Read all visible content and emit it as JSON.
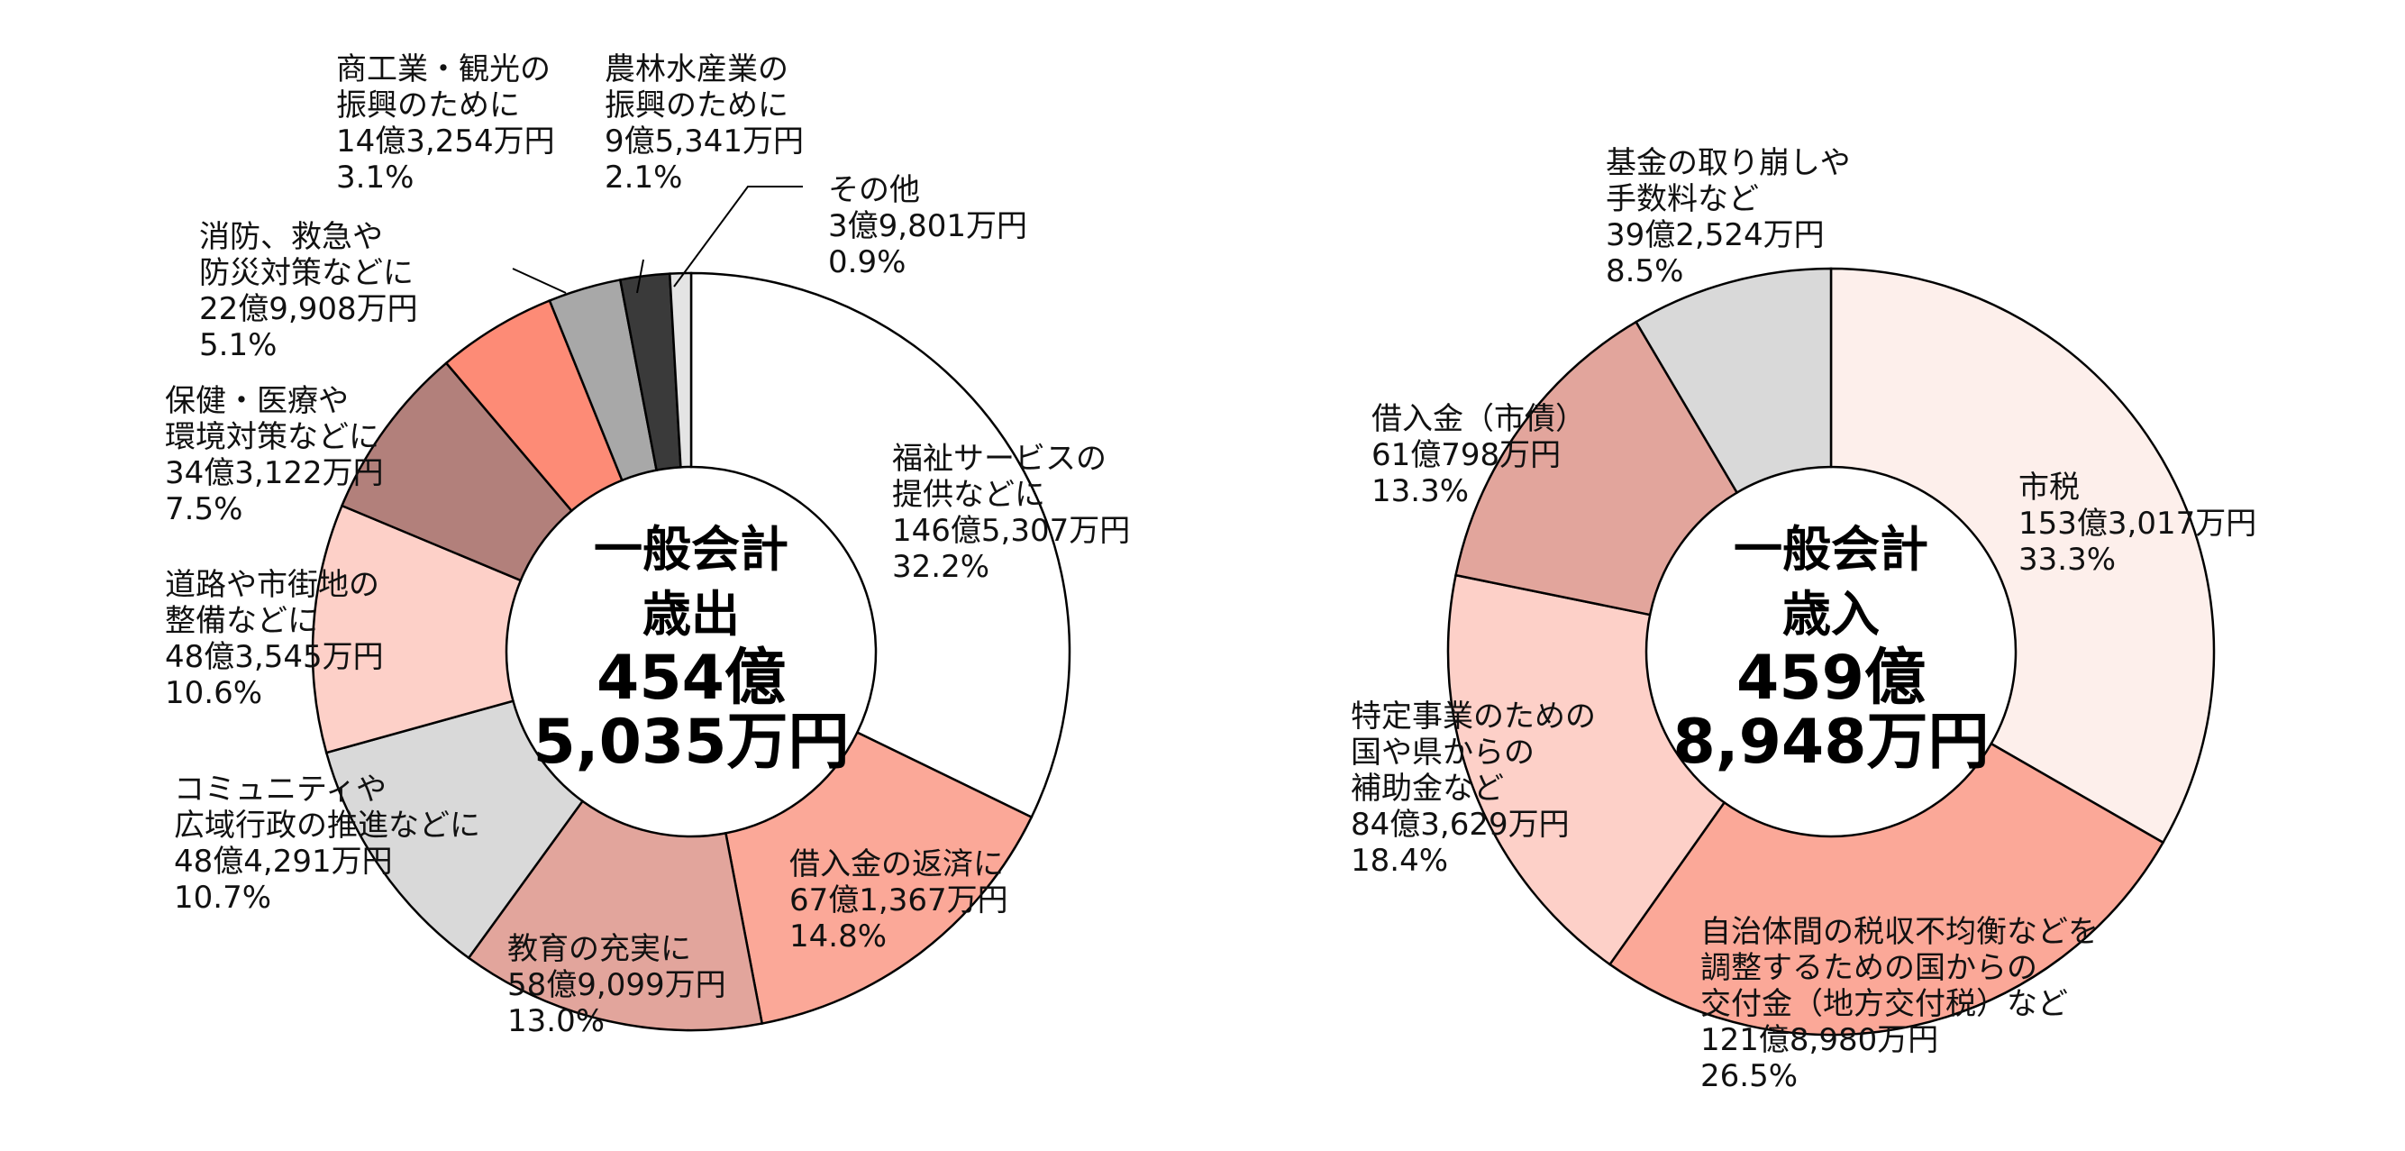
{
  "chart_data": [
    {
      "type": "pie",
      "style": "donut",
      "center_label": [
        "一般会計",
        "歳出",
        "454億",
        "5,035万円"
      ],
      "slices": [
        {
          "label": [
            "福祉サービスの",
            "提供などに"
          ],
          "amount": "146億5,307万円",
          "percent_text": "32.2%",
          "value": 32.2,
          "color": "#ffffff"
        },
        {
          "label": [
            "借入金の返済に"
          ],
          "amount": "67億1,367万円",
          "percent_text": "14.8%",
          "value": 14.8,
          "color": "#fba898"
        },
        {
          "label": [
            "教育の充実に"
          ],
          "amount": "58億9,099万円",
          "percent_text": "13.0%",
          "value": 13.0,
          "color": "#e2a59c"
        },
        {
          "label": [
            "コミュニティや",
            "広域行政の推進などに"
          ],
          "amount": "48億4,291万円",
          "percent_text": "10.7%",
          "value": 10.7,
          "color": "#d9d9d9"
        },
        {
          "label": [
            "道路や市街地の",
            "整備などに"
          ],
          "amount": "48億3,545万円",
          "percent_text": "10.6%",
          "value": 10.6,
          "color": "#fdd0c8"
        },
        {
          "label": [
            "保健・医療や",
            "環境対策などに"
          ],
          "amount": "34億3,122万円",
          "percent_text": "7.5%",
          "value": 7.5,
          "color": "#b2807b"
        },
        {
          "label": [
            "消防、救急や",
            "防災対策などに"
          ],
          "amount": "22億9,908万円",
          "percent_text": "5.1%",
          "value": 5.1,
          "color": "#fd8b76"
        },
        {
          "label": [
            "商工業・観光の",
            "振興のために"
          ],
          "amount": "14億3,254万円",
          "percent_text": "3.1%",
          "value": 3.1,
          "color": "#a8a8a8"
        },
        {
          "label": [
            "農林水産業の",
            "振興のために"
          ],
          "amount": "9億5,341万円",
          "percent_text": "2.1%",
          "value": 2.1,
          "color": "#3a3a3a"
        },
        {
          "label": [
            "その他"
          ],
          "amount": "3億9,801万円",
          "percent_text": "0.9%",
          "value": 0.9,
          "color": "#e4e4e4"
        }
      ]
    },
    {
      "type": "pie",
      "style": "donut",
      "center_label": [
        "一般会計",
        "歳入",
        "459億",
        "8,948万円"
      ],
      "slices": [
        {
          "label": [
            "市税"
          ],
          "amount": "153億3,017万円",
          "percent_text": "33.3%",
          "value": 33.3,
          "color": "#fdefeb"
        },
        {
          "label": [
            "自治体間の税収不均衡などを",
            "調整するための国からの",
            "交付金（地方交付税）など"
          ],
          "amount": "121億8,980万円",
          "percent_text": "26.5%",
          "value": 26.5,
          "color": "#fba898"
        },
        {
          "label": [
            "特定事業のための",
            "国や県からの",
            "補助金など"
          ],
          "amount": "84億3,629万円",
          "percent_text": "18.4%",
          "value": 18.4,
          "color": "#fdd0c8"
        },
        {
          "label": [
            "借入金（市債）"
          ],
          "amount": "61億798万円",
          "percent_text": "13.3%",
          "value": 13.3,
          "color": "#e2a59c"
        },
        {
          "label": [
            "基金の取り崩しや",
            "手数料など"
          ],
          "amount": "39億2,524万円",
          "percent_text": "8.5%",
          "value": 8.5,
          "color": "#d9d9d9"
        }
      ]
    }
  ]
}
